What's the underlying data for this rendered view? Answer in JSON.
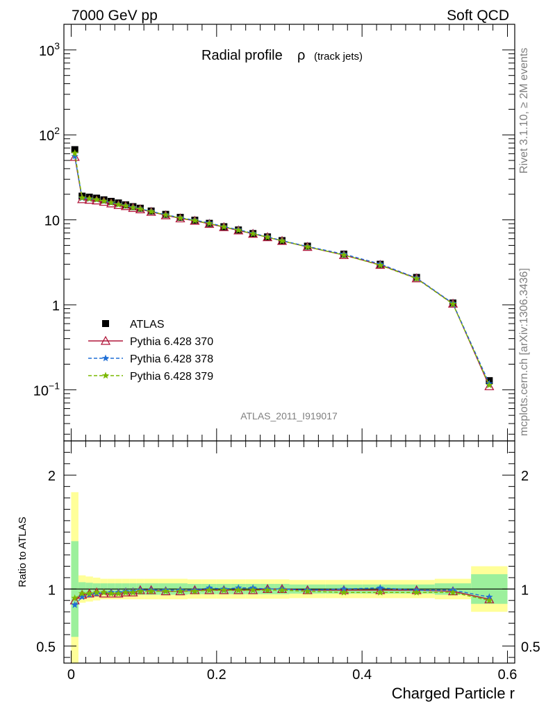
{
  "header": {
    "left_label": "7000 GeV pp",
    "right_label": "Soft QCD"
  },
  "side_text": {
    "top": "Rivet 3.1.10, ≥ 2M events",
    "bottom": "mcplots.cern.ch [arXiv:1306.3436]"
  },
  "chart_data": [
    {
      "type": "line",
      "title": "Radial profile",
      "title_symbol": "ρ",
      "title_suffix": "(track jets)",
      "watermark": "ATLAS_2011_I919017",
      "xlabel": "",
      "ylabel": "",
      "xlim": [
        -0.01,
        0.61
      ],
      "ylim": [
        0.025,
        2000
      ],
      "y_scale": "log",
      "y_ticks": [
        {
          "value": 0.1,
          "base": "10",
          "exp": "−1"
        },
        {
          "value": 1,
          "base": "1",
          "exp": ""
        },
        {
          "value": 10,
          "base": "10",
          "exp": ""
        },
        {
          "value": 100,
          "base": "10",
          "exp": "2"
        },
        {
          "value": 1000,
          "base": "10",
          "exp": "3"
        }
      ],
      "legend_position": "bottom-left",
      "x": [
        0.005,
        0.015,
        0.025,
        0.035,
        0.045,
        0.055,
        0.065,
        0.075,
        0.085,
        0.095,
        0.11,
        0.13,
        0.15,
        0.17,
        0.19,
        0.21,
        0.23,
        0.25,
        0.27,
        0.29,
        0.325,
        0.375,
        0.425,
        0.475,
        0.525,
        0.575
      ],
      "series": [
        {
          "name": "ATLAS",
          "marker": "square",
          "color": "#000000",
          "values": [
            67,
            19,
            18.5,
            18,
            17.2,
            16.5,
            15.8,
            15.0,
            14.3,
            13.7,
            12.7,
            11.6,
            10.7,
            9.9,
            9.1,
            8.3,
            7.6,
            6.9,
            6.3,
            5.7,
            4.9,
            3.95,
            3.0,
            2.1,
            1.05,
            0.128
          ]
        },
        {
          "name": "Pythia 6.428 370",
          "marker": "triangle",
          "color": "#b0163a",
          "dash": "",
          "values": [
            55,
            17.5,
            17.2,
            16.9,
            16.3,
            15.6,
            14.9,
            14.5,
            13.8,
            13.3,
            12.4,
            11.3,
            10.4,
            9.75,
            8.95,
            8.2,
            7.5,
            6.85,
            6.25,
            5.65,
            4.8,
            3.85,
            2.95,
            2.05,
            1.03,
            0.11
          ]
        },
        {
          "name": "Pythia 6.428 378",
          "marker": "star",
          "color": "#1f6fd6",
          "dash": "5,3",
          "values": [
            56,
            18.0,
            17.6,
            17.3,
            16.6,
            15.9,
            15.2,
            14.7,
            14.0,
            13.5,
            12.6,
            11.5,
            10.6,
            9.9,
            9.2,
            8.3,
            7.65,
            6.95,
            6.3,
            5.7,
            4.85,
            3.95,
            3.02,
            2.07,
            1.04,
            0.118
          ]
        },
        {
          "name": "Pythia 6.428 379",
          "marker": "star",
          "color": "#7ab800",
          "dash": "5,3",
          "values": [
            61,
            18.2,
            17.7,
            17.3,
            16.6,
            15.9,
            15.1,
            14.6,
            13.9,
            13.4,
            12.5,
            11.4,
            10.5,
            9.8,
            9.05,
            8.25,
            7.55,
            6.85,
            6.25,
            5.65,
            4.8,
            3.85,
            2.92,
            2.03,
            1.02,
            0.113
          ]
        }
      ]
    },
    {
      "type": "line",
      "title": "",
      "xlabel": "Charged Particle r",
      "ylabel": "Ratio to ATLAS",
      "xlim": [
        -0.01,
        0.61
      ],
      "ylim": [
        0.35,
        2.3
      ],
      "x_ticks": [
        {
          "value": 0,
          "label": "0"
        },
        {
          "value": 0.2,
          "label": "0.2"
        },
        {
          "value": 0.4,
          "label": "0.4"
        },
        {
          "value": 0.6,
          "label": "0.6"
        }
      ],
      "y_ticks": [
        {
          "value": 0.5,
          "label": "0.5"
        },
        {
          "value": 1,
          "label": "1"
        },
        {
          "value": 2,
          "label": "2"
        }
      ],
      "reference_line": 1,
      "bands": {
        "bin_edges": [
          0,
          0.01,
          0.02,
          0.03,
          0.04,
          0.05,
          0.06,
          0.07,
          0.08,
          0.09,
          0.1,
          0.12,
          0.14,
          0.16,
          0.18,
          0.2,
          0.22,
          0.24,
          0.26,
          0.28,
          0.3,
          0.35,
          0.4,
          0.45,
          0.5,
          0.55,
          0.6
        ],
        "inner_color": "#9cf09c",
        "outer_color": "#ffff99",
        "inner_halfwidth": [
          0.42,
          0.06,
          0.055,
          0.05,
          0.05,
          0.05,
          0.05,
          0.05,
          0.05,
          0.05,
          0.05,
          0.05,
          0.05,
          0.045,
          0.045,
          0.045,
          0.045,
          0.045,
          0.045,
          0.045,
          0.04,
          0.04,
          0.04,
          0.04,
          0.05,
          0.13
        ],
        "outer_halfwidth": [
          0.85,
          0.12,
          0.11,
          0.1,
          0.09,
          0.09,
          0.09,
          0.09,
          0.09,
          0.09,
          0.09,
          0.09,
          0.09,
          0.085,
          0.085,
          0.085,
          0.085,
          0.085,
          0.085,
          0.085,
          0.08,
          0.08,
          0.08,
          0.08,
          0.09,
          0.2
        ]
      },
      "x": [
        0.005,
        0.015,
        0.025,
        0.035,
        0.045,
        0.055,
        0.065,
        0.075,
        0.085,
        0.095,
        0.11,
        0.13,
        0.15,
        0.17,
        0.19,
        0.21,
        0.23,
        0.25,
        0.27,
        0.29,
        0.325,
        0.375,
        0.425,
        0.475,
        0.525,
        0.575
      ],
      "series": [
        {
          "name": "Pythia 6.428 370",
          "marker": "triangle",
          "color": "#b0163a",
          "dash": "",
          "values": [
            0.9,
            0.95,
            0.96,
            0.97,
            0.96,
            0.96,
            0.96,
            0.97,
            0.97,
            0.99,
            0.99,
            0.98,
            0.98,
            0.99,
            0.99,
            0.99,
            0.99,
            0.99,
            1.0,
            1.0,
            0.99,
            0.99,
            0.99,
            0.99,
            0.98,
            0.91
          ]
        },
        {
          "name": "Pythia 6.428 378",
          "marker": "star",
          "color": "#1f6fd6",
          "dash": "5,3",
          "values": [
            0.86,
            0.93,
            0.95,
            0.96,
            0.97,
            0.97,
            0.97,
            0.98,
            0.98,
            0.99,
            0.99,
            0.99,
            0.99,
            0.99,
            1.01,
            1.0,
            1.01,
            1.01,
            1.0,
            1.0,
            0.99,
            1.0,
            1.01,
            0.99,
            0.99,
            0.93
          ]
        },
        {
          "name": "Pythia 6.428 379",
          "marker": "star",
          "color": "#7ab800",
          "dash": "5,3",
          "values": [
            0.92,
            0.96,
            0.96,
            0.97,
            0.97,
            0.96,
            0.96,
            0.97,
            0.97,
            0.98,
            0.98,
            0.98,
            0.98,
            0.98,
            0.99,
            0.99,
            0.99,
            0.99,
            0.99,
            0.99,
            0.98,
            0.97,
            0.97,
            0.97,
            0.97,
            0.9
          ]
        }
      ]
    }
  ]
}
